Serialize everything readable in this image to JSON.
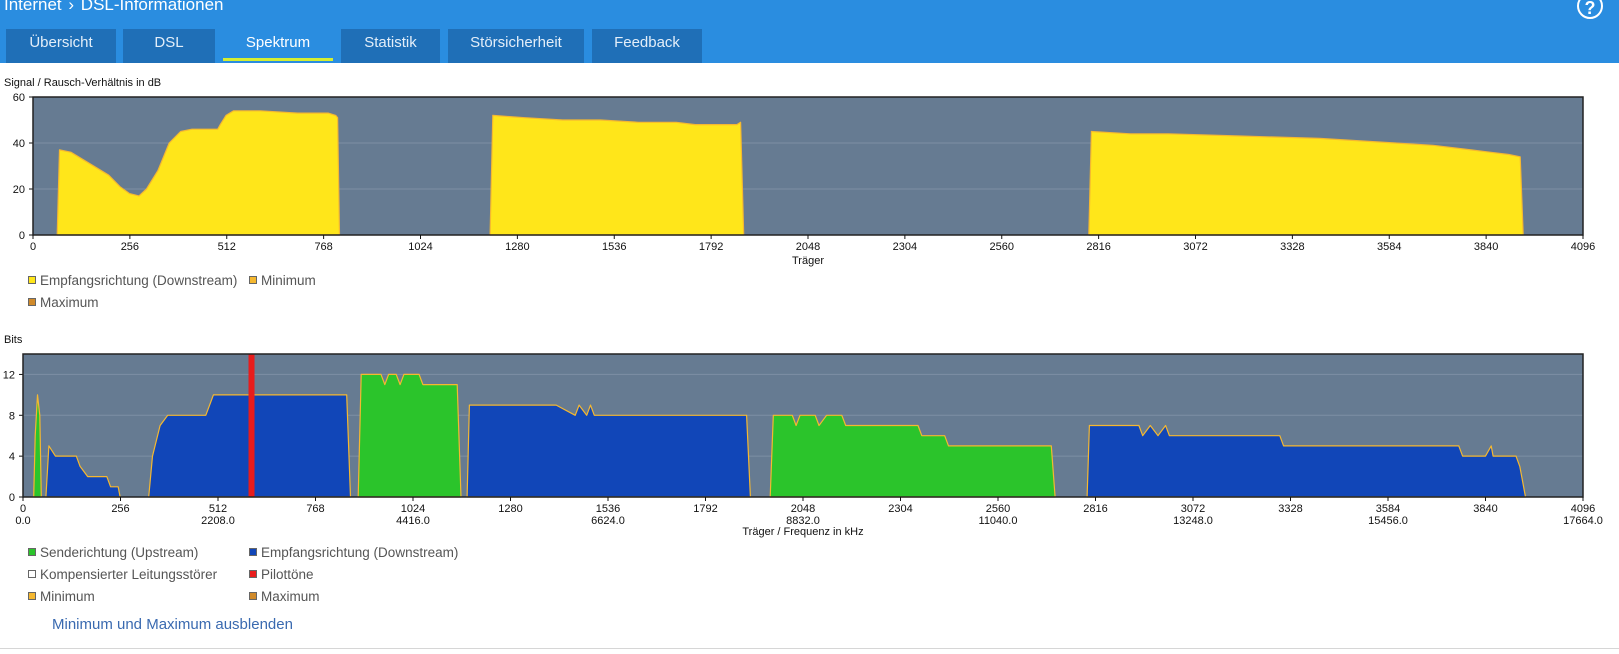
{
  "header": {
    "breadcrumb": [
      "Internet",
      "DSL-Informationen"
    ],
    "help_label": "?"
  },
  "tabs": [
    {
      "label": "Übersicht",
      "active": false
    },
    {
      "label": "DSL",
      "active": false
    },
    {
      "label": "Spektrum",
      "active": true
    },
    {
      "label": "Statistik",
      "active": false
    },
    {
      "label": "Störsicherheit",
      "active": false
    },
    {
      "label": "Feedback",
      "active": false
    }
  ],
  "colors": {
    "header_bg": "#2a8de0",
    "tab_bg": "#1f6fb7",
    "active_underline": "#d4ee32",
    "plot_bg": "#667b92",
    "downstream_snr": "#ffe61a",
    "minimum": "#f5b830",
    "maximum": "#d08a2a",
    "upstream": "#2bc42b",
    "downstream": "#1146b8",
    "pilot": "#e81c1c",
    "link": "#3a6ab0"
  },
  "chart_data": [
    {
      "type": "area",
      "title": "Signal / Rausch-Verhältnis in dB",
      "xlabel": "Träger",
      "xlim": [
        0,
        4096
      ],
      "ylim": [
        0,
        60
      ],
      "x_ticks": [
        0,
        256,
        512,
        768,
        1024,
        1280,
        1536,
        1792,
        2048,
        2304,
        2560,
        2816,
        3072,
        3328,
        3584,
        3840,
        4096
      ],
      "y_ticks": [
        0,
        20,
        40,
        60
      ],
      "grid": true,
      "legend": [
        {
          "label": "Empfangsrichtung (Downstream)",
          "color": "#ffe61a"
        },
        {
          "label": "Minimum",
          "color": "#f5b830"
        },
        {
          "label": "Maximum",
          "color": "#d08a2a"
        }
      ],
      "series": [
        {
          "name": "Empfangsrichtung (Downstream)",
          "color": "#ffe61a",
          "segments": [
            [
              [
                64,
                0
              ],
              [
                70,
                37
              ],
              [
                100,
                36
              ],
              [
                150,
                31
              ],
              [
                200,
                26
              ],
              [
                230,
                21
              ],
              [
                255,
                18
              ],
              [
                280,
                17
              ],
              [
                300,
                20
              ],
              [
                330,
                28
              ],
              [
                360,
                40
              ],
              [
                390,
                45
              ],
              [
                420,
                46
              ],
              [
                470,
                46
              ],
              [
                488,
                46
              ],
              [
                495,
                48
              ],
              [
                510,
                52
              ],
              [
                530,
                54
              ],
              [
                600,
                54
              ],
              [
                700,
                53
              ],
              [
                780,
                53
              ],
              [
                800,
                52
              ],
              [
                805,
                51
              ],
              [
                810,
                0
              ]
            ],
            [
              [
                1208,
                0
              ],
              [
                1215,
                52
              ],
              [
                1300,
                51
              ],
              [
                1400,
                50
              ],
              [
                1500,
                50
              ],
              [
                1600,
                49
              ],
              [
                1700,
                49
              ],
              [
                1750,
                48
              ],
              [
                1860,
                48
              ],
              [
                1870,
                49
              ],
              [
                1878,
                0
              ]
            ],
            [
              [
                2790,
                0
              ],
              [
                2797,
                45
              ],
              [
                2900,
                44
              ],
              [
                3000,
                44
              ],
              [
                3200,
                43
              ],
              [
                3400,
                42
              ],
              [
                3600,
                40
              ],
              [
                3700,
                39
              ],
              [
                3800,
                37
              ],
              [
                3850,
                36
              ],
              [
                3900,
                35
              ],
              [
                3930,
                34
              ],
              [
                3938,
                0
              ]
            ]
          ]
        }
      ]
    },
    {
      "type": "area",
      "title": "Bits",
      "xlabel": "Träger / Frequenz in kHz",
      "xlim": [
        0,
        4096
      ],
      "ylim": [
        0,
        14
      ],
      "x_ticks": [
        0,
        256,
        512,
        768,
        1024,
        1280,
        1536,
        1792,
        2048,
        2304,
        2560,
        2816,
        3072,
        3328,
        3584,
        3840,
        4096
      ],
      "freq_ticks": [
        {
          "carrier": 0,
          "label": "0.0"
        },
        {
          "carrier": 512,
          "label": "2208.0"
        },
        {
          "carrier": 1024,
          "label": "4416.0"
        },
        {
          "carrier": 1536,
          "label": "6624.0"
        },
        {
          "carrier": 2048,
          "label": "8832.0"
        },
        {
          "carrier": 2560,
          "label": "11040.0"
        },
        {
          "carrier": 3072,
          "label": "13248.0"
        },
        {
          "carrier": 3584,
          "label": "15456.0"
        },
        {
          "carrier": 4096,
          "label": "17664.0"
        }
      ],
      "y_ticks": [
        0,
        4,
        8,
        12
      ],
      "grid": true,
      "legend": [
        {
          "label": "Senderichtung (Upstream)",
          "color": "#2bc42b"
        },
        {
          "label": "Empfangsrichtung (Downstream)",
          "color": "#1146b8"
        },
        {
          "label": "Kompensierter Leitungsstörer",
          "color": "#ffffff"
        },
        {
          "label": "Pilottöne",
          "color": "#e81c1c"
        },
        {
          "label": "Minimum",
          "color": "#f5b830"
        },
        {
          "label": "Maximum",
          "color": "#d08a2a"
        }
      ],
      "pilot_tones": [
        600
      ],
      "series": [
        {
          "name": "Senderichtung (Upstream)",
          "color": "#2bc42b",
          "segments": [
            [
              [
                28,
                0
              ],
              [
                32,
                6
              ],
              [
                38,
                10
              ],
              [
                44,
                8
              ],
              [
                48,
                0
              ]
            ],
            [
              [
                880,
                0
              ],
              [
                888,
                12
              ],
              [
                940,
                12
              ],
              [
                950,
                11
              ],
              [
                960,
                12
              ],
              [
                980,
                12
              ],
              [
                990,
                11
              ],
              [
                1000,
                12
              ],
              [
                1040,
                12
              ],
              [
                1050,
                11
              ],
              [
                1070,
                11
              ],
              [
                1140,
                11
              ],
              [
                1150,
                0
              ]
            ],
            [
              [
                1962,
                0
              ],
              [
                1970,
                8
              ],
              [
                2020,
                8
              ],
              [
                2030,
                7
              ],
              [
                2040,
                8
              ],
              [
                2080,
                8
              ],
              [
                2090,
                7
              ],
              [
                2110,
                8
              ],
              [
                2150,
                8
              ],
              [
                2160,
                7
              ],
              [
                2350,
                7
              ],
              [
                2360,
                6
              ],
              [
                2420,
                6
              ],
              [
                2430,
                5
              ],
              [
                2700,
                5
              ],
              [
                2710,
                0
              ]
            ]
          ]
        },
        {
          "name": "Empfangsrichtung (Downstream)",
          "color": "#1146b8",
          "segments": [
            [
              [
                60,
                0
              ],
              [
                68,
                5
              ],
              [
                85,
                4
              ],
              [
                140,
                4
              ],
              [
                150,
                3
              ],
              [
                170,
                2
              ],
              [
                220,
                2
              ],
              [
                230,
                1
              ],
              [
                250,
                1
              ],
              [
                255,
                0
              ]
            ],
            [
              [
                330,
                0
              ],
              [
                340,
                4
              ],
              [
                360,
                7
              ],
              [
                380,
                8
              ],
              [
                480,
                8
              ],
              [
                500,
                10
              ],
              [
                850,
                10
              ],
              [
                860,
                0
              ]
            ],
            [
              [
                1166,
                0
              ],
              [
                1172,
                9
              ],
              [
                1400,
                9
              ],
              [
                1450,
                8
              ],
              [
                1460,
                9
              ],
              [
                1480,
                8
              ],
              [
                1490,
                9
              ],
              [
                1500,
                8
              ],
              [
                1900,
                8
              ],
              [
                1910,
                0
              ]
            ],
            [
              [
                2794,
                0
              ],
              [
                2800,
                7
              ],
              [
                2930,
                7
              ],
              [
                2940,
                6
              ],
              [
                2960,
                7
              ],
              [
                2980,
                6
              ],
              [
                3000,
                7
              ],
              [
                3010,
                6
              ],
              [
                3300,
                6
              ],
              [
                3310,
                5
              ],
              [
                3770,
                5
              ],
              [
                3780,
                4
              ],
              [
                3840,
                4
              ],
              [
                3855,
                5
              ],
              [
                3860,
                4
              ],
              [
                3920,
                4
              ],
              [
                3930,
                3
              ],
              [
                3945,
                0
              ]
            ]
          ]
        }
      ]
    }
  ],
  "labels": {
    "toggle_link": "Minimum und Maximum ausblenden"
  }
}
